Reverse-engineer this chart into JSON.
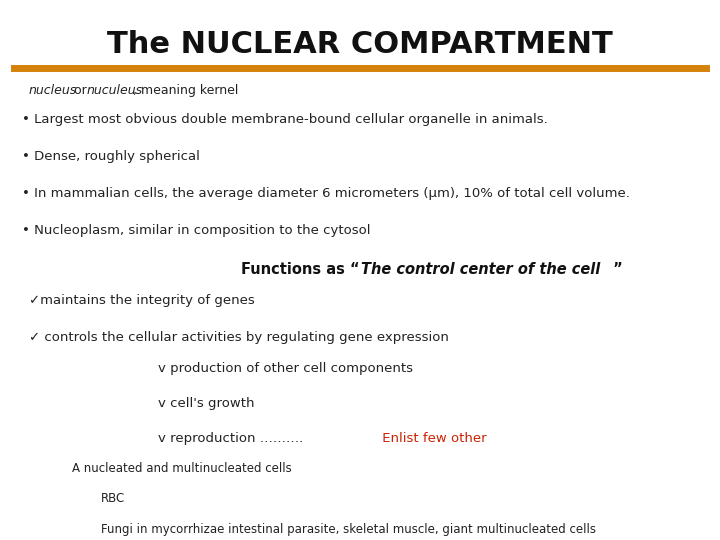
{
  "title": "The NUCLEAR COMPARTMENT",
  "title_fontsize": 22,
  "line_color": "#D4820A",
  "background_color": "#FFFFFF",
  "bullet_points": [
    "• Largest most obvious double membrane-bound cellular organelle in animals.",
    "• Dense, roughly spherical",
    "• In mammalian cells, the average diameter 6 micrometers (μm), 10% of total cell volume.",
    "• Nucleoplasm, similar in composition to the cytosol"
  ],
  "check_items": [
    "✓maintains the integrity of genes",
    "✓ controls the cellular activities by regulating gene expression"
  ],
  "diamond_items_black": [
    "v production of other cell components",
    "v cell's growth"
  ],
  "diamond_item_mixed_black": "v reproduction ……….",
  "diamond_item_mixed_red": " Enlist few other",
  "note_items": [
    "A nucleated and multinucleated cells",
    "RBC",
    "Fungi in mycorrhizae intestinal parasite, skeletal muscle, giant multinucleated cells"
  ],
  "indent_check": 0.04,
  "indent_diamond": 0.22,
  "indent_note1": 0.1,
  "indent_note2": 0.14,
  "indent_note3": 0.14
}
